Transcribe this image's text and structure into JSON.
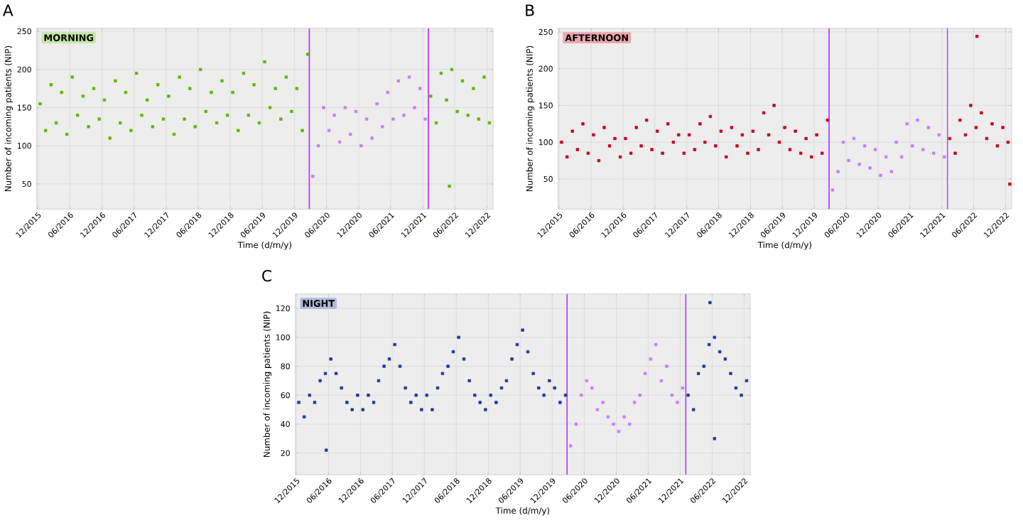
{
  "chart_data": [
    {
      "type": "scatter",
      "title": "A",
      "annotations": [
        "MORNING"
      ],
      "xlabel": "Time (d/m/y)",
      "ylabel": "Number of incoming patients (NIP)",
      "xlim": [
        "2015-11-25",
        "2023-01-05"
      ],
      "ylim": [
        17,
        254
      ],
      "yticks": [
        50,
        100,
        150,
        200,
        250
      ],
      "xticks": [
        {
          "value": "2015-12-01",
          "label": "12/2015"
        },
        {
          "value": "2016-06-01",
          "label": "06/2016"
        },
        {
          "value": "2016-12-01",
          "label": "12/2016"
        },
        {
          "value": "2017-06-01",
          "label": "06/2017"
        },
        {
          "value": "2017-12-01",
          "label": "12/2017"
        },
        {
          "value": "2018-06-01",
          "label": "06/2018"
        },
        {
          "value": "2018-12-01",
          "label": "12/2018"
        },
        {
          "value": "2019-06-01",
          "label": "06/2019"
        },
        {
          "value": "2019-12-01",
          "label": "12/2019"
        },
        {
          "value": "2020-06-01",
          "label": "06/2020"
        },
        {
          "value": "2020-12-01",
          "label": "12/2020"
        },
        {
          "value": "2021-06-01",
          "label": "06/2021"
        },
        {
          "value": "2021-12-01",
          "label": "12/2021"
        },
        {
          "value": "2022-06-01",
          "label": "06/2022"
        },
        {
          "value": "2022-12-01",
          "label": "12/2022"
        }
      ],
      "grid": true,
      "marker": "square",
      "ref_lines": [
        {
          "axis": "x",
          "value": "2020-02-24",
          "color": "#b040ff"
        },
        {
          "axis": "x",
          "value": "2022-01-02",
          "color": "#b040ff"
        }
      ],
      "series": [
        {
          "color": "#5cb800",
          "x": [
            "2015-12-15",
            "2016-01-15",
            "2016-02-15",
            "2016-03-15",
            "2016-04-15",
            "2016-05-15",
            "2016-06-15",
            "2016-07-15",
            "2016-08-15",
            "2016-09-15",
            "2016-10-15",
            "2016-11-15",
            "2016-12-15",
            "2017-01-15",
            "2017-02-15",
            "2017-03-15",
            "2017-04-15",
            "2017-05-15",
            "2017-06-15",
            "2017-07-15",
            "2017-08-15",
            "2017-09-15",
            "2017-10-15",
            "2017-11-15",
            "2017-12-15",
            "2018-01-15",
            "2018-02-15",
            "2018-03-15",
            "2018-04-15",
            "2018-05-15",
            "2018-06-15",
            "2018-07-15",
            "2018-08-15",
            "2018-09-15",
            "2018-10-15",
            "2018-11-15",
            "2018-12-15",
            "2019-01-15",
            "2019-02-15",
            "2019-03-15",
            "2019-04-15",
            "2019-05-15",
            "2019-06-15",
            "2019-07-15",
            "2019-08-15",
            "2019-09-15",
            "2019-10-15",
            "2019-11-15",
            "2019-12-15",
            "2020-01-15",
            "2020-02-15"
          ],
          "values": [
            155,
            120,
            180,
            130,
            170,
            115,
            190,
            140,
            165,
            125,
            175,
            135,
            160,
            110,
            185,
            130,
            170,
            120,
            195,
            140,
            160,
            125,
            180,
            135,
            165,
            115,
            190,
            135,
            175,
            125,
            200,
            145,
            170,
            130,
            185,
            140,
            170,
            120,
            195,
            140,
            180,
            130,
            210,
            150,
            175,
            135,
            190,
            145,
            175,
            120,
            220
          ]
        },
        {
          "color": "#c77dff",
          "x": [
            "2020-03-15",
            "2020-04-15",
            "2020-05-15",
            "2020-06-15",
            "2020-07-15",
            "2020-08-15",
            "2020-09-15",
            "2020-10-15",
            "2020-11-15",
            "2020-12-15",
            "2021-01-15",
            "2021-02-15",
            "2021-03-15",
            "2021-04-15",
            "2021-05-15",
            "2021-06-15",
            "2021-07-15",
            "2021-08-15",
            "2021-09-15",
            "2021-10-15",
            "2021-11-15",
            "2021-12-15"
          ],
          "values": [
            60,
            100,
            150,
            120,
            140,
            105,
            150,
            115,
            145,
            100,
            135,
            110,
            155,
            125,
            170,
            135,
            185,
            140,
            190,
            150,
            175,
            135
          ]
        },
        {
          "color": "#5cb800",
          "x": [
            "2022-01-15",
            "2022-02-15",
            "2022-03-15",
            "2022-04-15",
            "2022-05-15",
            "2022-06-15",
            "2022-07-15",
            "2022-08-15",
            "2022-09-15",
            "2022-10-15",
            "2022-11-15",
            "2022-12-15",
            "2022-05-01"
          ],
          "values": [
            165,
            130,
            195,
            160,
            200,
            145,
            185,
            140,
            175,
            135,
            190,
            130,
            47
          ]
        }
      ]
    },
    {
      "type": "scatter",
      "title": "B",
      "annotations": [
        "AFTERNOON"
      ],
      "xlabel": "Time (d/m/y)",
      "ylabel": "Number of incoming patients (NIP)",
      "xlim": [
        "2015-11-25",
        "2023-01-05"
      ],
      "ylim": [
        9,
        255
      ],
      "yticks": [
        50,
        100,
        150,
        200,
        250
      ],
      "xticks": [
        {
          "value": "2015-12-01",
          "label": "12/2015"
        },
        {
          "value": "2016-06-01",
          "label": "06/2016"
        },
        {
          "value": "2016-12-01",
          "label": "12/2016"
        },
        {
          "value": "2017-06-01",
          "label": "06/2017"
        },
        {
          "value": "2017-12-01",
          "label": "12/2017"
        },
        {
          "value": "2018-06-01",
          "label": "06/2018"
        },
        {
          "value": "2018-12-01",
          "label": "12/2018"
        },
        {
          "value": "2019-06-01",
          "label": "06/2019"
        },
        {
          "value": "2019-12-01",
          "label": "12/2019"
        },
        {
          "value": "2020-06-01",
          "label": "06/2020"
        },
        {
          "value": "2020-12-01",
          "label": "12/2020"
        },
        {
          "value": "2021-06-01",
          "label": "06/2021"
        },
        {
          "value": "2021-12-01",
          "label": "12/2021"
        },
        {
          "value": "2022-06-01",
          "label": "06/2022"
        },
        {
          "value": "2022-12-01",
          "label": "12/2022"
        }
      ],
      "grid": true,
      "marker": "square",
      "ref_lines": [
        {
          "axis": "x",
          "value": "2020-02-24",
          "color": "#b040ff"
        },
        {
          "axis": "x",
          "value": "2022-01-02",
          "color": "#b040ff"
        }
      ],
      "series": [
        {
          "color": "#c8001e",
          "x": [
            "2015-12-15",
            "2016-01-15",
            "2016-02-15",
            "2016-03-15",
            "2016-04-15",
            "2016-05-15",
            "2016-06-15",
            "2016-07-15",
            "2016-08-15",
            "2016-09-15",
            "2016-10-15",
            "2016-11-15",
            "2016-12-15",
            "2017-01-15",
            "2017-02-15",
            "2017-03-15",
            "2017-04-15",
            "2017-05-15",
            "2017-06-15",
            "2017-07-15",
            "2017-08-15",
            "2017-09-15",
            "2017-10-15",
            "2017-11-15",
            "2017-12-15",
            "2018-01-15",
            "2018-02-15",
            "2018-03-15",
            "2018-04-15",
            "2018-05-15",
            "2018-06-15",
            "2018-07-15",
            "2018-08-15",
            "2018-09-15",
            "2018-10-15",
            "2018-11-15",
            "2018-12-15",
            "2019-01-15",
            "2019-02-15",
            "2019-03-15",
            "2019-04-15",
            "2019-05-15",
            "2019-06-15",
            "2019-07-15",
            "2019-08-15",
            "2019-09-15",
            "2019-10-15",
            "2019-11-15",
            "2019-12-15",
            "2020-01-15",
            "2020-02-15"
          ],
          "values": [
            100,
            80,
            115,
            90,
            125,
            85,
            110,
            75,
            120,
            95,
            105,
            80,
            105,
            85,
            120,
            95,
            130,
            90,
            115,
            85,
            125,
            100,
            110,
            85,
            110,
            90,
            125,
            100,
            135,
            95,
            115,
            80,
            120,
            95,
            110,
            85,
            115,
            90,
            140,
            110,
            150,
            100,
            120,
            90,
            115,
            85,
            105,
            80,
            110,
            85,
            130
          ]
        },
        {
          "color": "#c77dff",
          "x": [
            "2020-03-15",
            "2020-04-15",
            "2020-05-15",
            "2020-06-15",
            "2020-07-15",
            "2020-08-15",
            "2020-09-15",
            "2020-10-15",
            "2020-11-15",
            "2020-12-15",
            "2021-01-15",
            "2021-02-15",
            "2021-03-15",
            "2021-04-15",
            "2021-05-15",
            "2021-06-15",
            "2021-07-15",
            "2021-08-15",
            "2021-09-15",
            "2021-10-15",
            "2021-11-15",
            "2021-12-15"
          ],
          "values": [
            35,
            60,
            100,
            75,
            105,
            70,
            95,
            65,
            90,
            55,
            80,
            60,
            100,
            80,
            125,
            95,
            130,
            90,
            120,
            85,
            110,
            80
          ]
        },
        {
          "color": "#c8001e",
          "x": [
            "2022-01-15",
            "2022-02-15",
            "2022-03-15",
            "2022-04-15",
            "2022-05-15",
            "2022-06-15",
            "2022-07-15",
            "2022-08-15",
            "2022-09-15",
            "2022-10-15",
            "2022-11-15",
            "2022-12-15",
            "2022-06-20",
            "2022-12-25"
          ],
          "values": [
            105,
            85,
            130,
            110,
            150,
            120,
            140,
            105,
            125,
            95,
            120,
            100,
            244,
            43
          ]
        }
      ]
    },
    {
      "type": "scatter",
      "title": "C",
      "annotations": [
        "NIGHT"
      ],
      "xlabel": "Time (d/m/y)",
      "ylabel": "Number of incoming patients (NIP)",
      "xlim": [
        "2015-11-25",
        "2023-01-05"
      ],
      "ylim": [
        5,
        130
      ],
      "yticks": [
        20,
        40,
        60,
        80,
        100,
        120
      ],
      "xticks": [
        {
          "value": "2015-12-01",
          "label": "12/2015"
        },
        {
          "value": "2016-06-01",
          "label": "06/2016"
        },
        {
          "value": "2016-12-01",
          "label": "12/2016"
        },
        {
          "value": "2017-06-01",
          "label": "06/2017"
        },
        {
          "value": "2017-12-01",
          "label": "12/2017"
        },
        {
          "value": "2018-06-01",
          "label": "06/2018"
        },
        {
          "value": "2018-12-01",
          "label": "12/2018"
        },
        {
          "value": "2019-06-01",
          "label": "06/2019"
        },
        {
          "value": "2019-12-01",
          "label": "12/2019"
        },
        {
          "value": "2020-06-01",
          "label": "06/2020"
        },
        {
          "value": "2020-12-01",
          "label": "12/2020"
        },
        {
          "value": "2021-06-01",
          "label": "06/2021"
        },
        {
          "value": "2021-12-01",
          "label": "12/2021"
        },
        {
          "value": "2022-06-01",
          "label": "06/2022"
        },
        {
          "value": "2022-12-01",
          "label": "12/2022"
        }
      ],
      "grid": true,
      "marker": "square",
      "ref_lines": [
        {
          "axis": "x",
          "value": "2020-02-24",
          "color": "#b040ff"
        },
        {
          "axis": "x",
          "value": "2022-01-02",
          "color": "#b040ff"
        }
      ],
      "series": [
        {
          "color": "#1f3a9a",
          "x": [
            "2015-12-15",
            "2016-01-15",
            "2016-02-15",
            "2016-03-15",
            "2016-04-15",
            "2016-05-15",
            "2016-06-15",
            "2016-07-15",
            "2016-08-15",
            "2016-09-15",
            "2016-10-15",
            "2016-11-15",
            "2016-12-15",
            "2017-01-15",
            "2017-02-15",
            "2017-03-15",
            "2017-04-15",
            "2017-05-15",
            "2017-06-15",
            "2017-07-15",
            "2017-08-15",
            "2017-09-15",
            "2017-10-15",
            "2017-11-15",
            "2017-12-15",
            "2018-01-15",
            "2018-02-15",
            "2018-03-15",
            "2018-04-15",
            "2018-05-15",
            "2018-06-15",
            "2018-07-15",
            "2018-08-15",
            "2018-09-15",
            "2018-10-15",
            "2018-11-15",
            "2018-12-15",
            "2019-01-15",
            "2019-02-15",
            "2019-03-15",
            "2019-04-15",
            "2019-05-15",
            "2019-06-15",
            "2019-07-15",
            "2019-08-15",
            "2019-09-15",
            "2019-10-15",
            "2019-11-15",
            "2019-12-15",
            "2020-01-15",
            "2020-02-15",
            "2016-05-20"
          ],
          "values": [
            55,
            45,
            60,
            55,
            70,
            75,
            85,
            75,
            65,
            55,
            50,
            60,
            50,
            60,
            55,
            70,
            80,
            85,
            95,
            80,
            65,
            55,
            60,
            50,
            60,
            50,
            65,
            75,
            80,
            90,
            100,
            85,
            70,
            60,
            55,
            50,
            60,
            55,
            65,
            70,
            85,
            95,
            105,
            90,
            75,
            65,
            60,
            70,
            65,
            55,
            60,
            22
          ]
        },
        {
          "color": "#c77dff",
          "x": [
            "2020-03-15",
            "2020-04-15",
            "2020-05-15",
            "2020-06-15",
            "2020-07-15",
            "2020-08-15",
            "2020-09-15",
            "2020-10-15",
            "2020-11-15",
            "2020-12-15",
            "2021-01-15",
            "2021-02-15",
            "2021-03-15",
            "2021-04-15",
            "2021-05-15",
            "2021-06-15",
            "2021-07-15",
            "2021-08-15",
            "2021-09-15",
            "2021-10-15",
            "2021-11-15",
            "2021-12-15"
          ],
          "values": [
            25,
            40,
            60,
            70,
            65,
            50,
            55,
            45,
            40,
            35,
            45,
            40,
            55,
            60,
            75,
            85,
            95,
            70,
            80,
            60,
            55,
            65
          ]
        },
        {
          "color": "#1f3a9a",
          "x": [
            "2022-01-15",
            "2022-02-15",
            "2022-03-15",
            "2022-04-15",
            "2022-05-15",
            "2022-06-15",
            "2022-07-15",
            "2022-08-15",
            "2022-09-15",
            "2022-10-15",
            "2022-11-15",
            "2022-12-15",
            "2022-05-20",
            "2022-06-15"
          ],
          "values": [
            60,
            50,
            75,
            80,
            95,
            100,
            90,
            85,
            75,
            65,
            60,
            70,
            124,
            30
          ]
        }
      ]
    }
  ]
}
